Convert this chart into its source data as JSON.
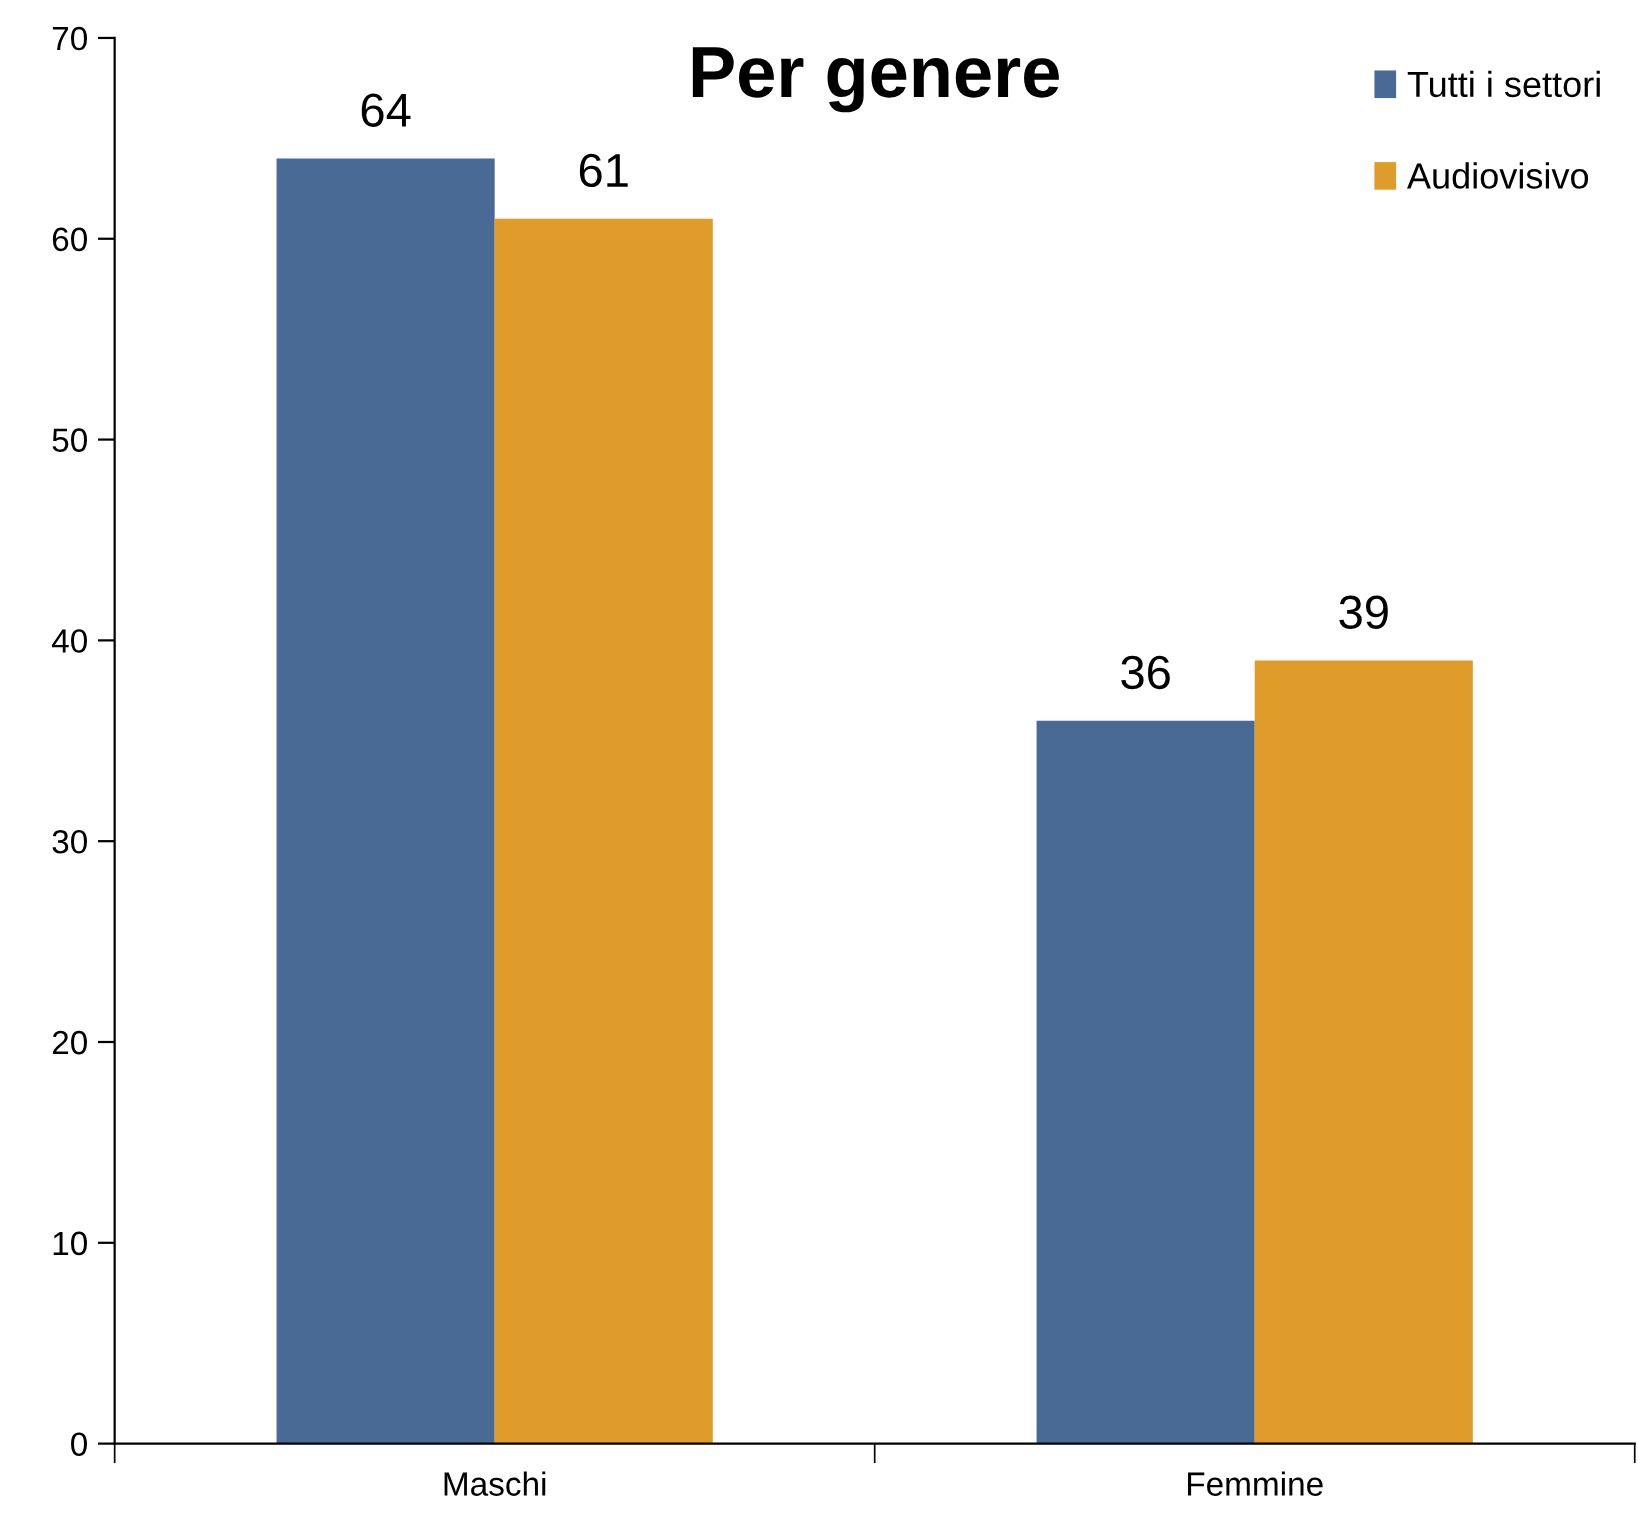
{
  "chart_data": {
    "type": "bar",
    "title": "Per genere",
    "categories": [
      "Maschi",
      "Femmine"
    ],
    "series": [
      {
        "name": "Tutti i settori",
        "color": "#4a6a96",
        "values": [
          64,
          36
        ]
      },
      {
        "name": "Audiovisivo",
        "color": "#e09c2a",
        "values": [
          61,
          39
        ]
      }
    ],
    "ylim": [
      0,
      70
    ],
    "yticks": [
      0,
      10,
      20,
      30,
      40,
      50,
      60,
      70
    ],
    "data_labels": true,
    "legend": "top right",
    "grid": false
  }
}
